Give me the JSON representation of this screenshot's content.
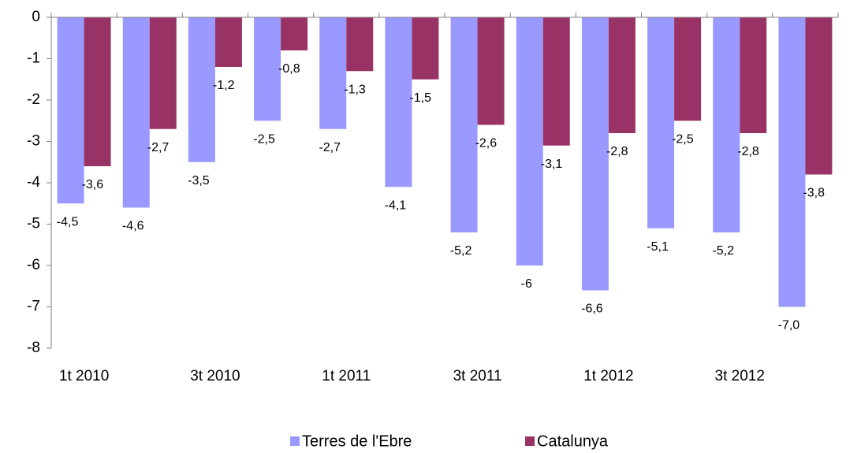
{
  "chart_data": {
    "type": "bar",
    "categories": [
      "1t 2010",
      null,
      "3t 2010",
      null,
      "1t 2011",
      null,
      "3t 2011",
      null,
      "1t 2012",
      null,
      "3t 2012",
      null
    ],
    "series": [
      {
        "name": "Terres de l'Ebre",
        "color": "#9999ff",
        "values": [
          -4.5,
          -4.6,
          -3.5,
          -2.5,
          -2.7,
          -4.1,
          -5.2,
          -6,
          -6.6,
          -5.1,
          -5.2,
          -7.0
        ],
        "value_labels": [
          "-4,5",
          "-4,6",
          "-3,5",
          "-2,5",
          "-2,7",
          "-4,1",
          "-5,2",
          "-6",
          "-6,6",
          "-5,1",
          "-5,2",
          "-7,0"
        ]
      },
      {
        "name": "Catalunya",
        "color": "#993366",
        "values": [
          -3.6,
          -2.7,
          -1.2,
          -0.8,
          -1.3,
          -1.5,
          -2.6,
          -3.1,
          -2.8,
          -2.5,
          -2.8,
          -3.8
        ],
        "value_labels": [
          "-3,6",
          "-2,7",
          "-1,2",
          "-0,8",
          "-1,3",
          "-1,5",
          "-2,6",
          "-3,1",
          "-2,8",
          "-2,5",
          "-2,8",
          "-3,8"
        ]
      }
    ],
    "ylim": [
      -8,
      0
    ],
    "yticks": [
      0,
      -1,
      -2,
      -3,
      -4,
      -5,
      -6,
      -7,
      -8
    ],
    "grid": false,
    "legend": "bottom"
  }
}
